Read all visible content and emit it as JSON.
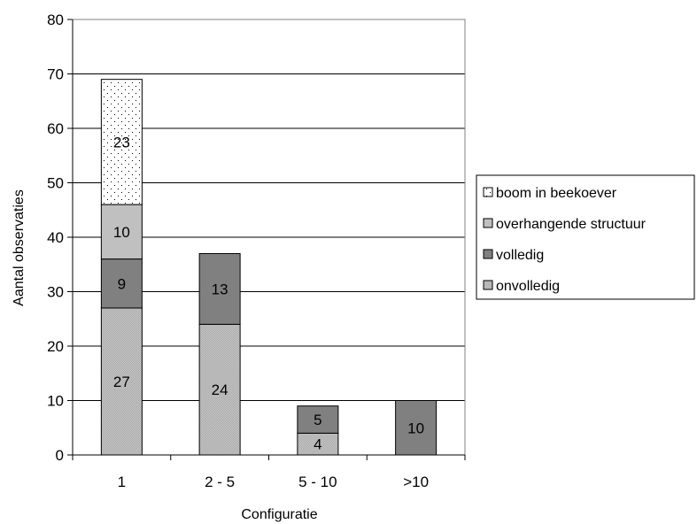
{
  "chart_data": {
    "type": "bar",
    "stacked": true,
    "categories": [
      "1",
      "2 - 5",
      "5 - 10",
      ">10"
    ],
    "series": [
      {
        "name": "onvolledig",
        "values": [
          27,
          24,
          4,
          0
        ],
        "color": "#c0c0c0",
        "pattern": "fine-check"
      },
      {
        "name": "volledig",
        "values": [
          9,
          13,
          5,
          10
        ],
        "color": "#808080",
        "pattern": "solid"
      },
      {
        "name": "overhangende structuur",
        "values": [
          10,
          0,
          0,
          0
        ],
        "color": "#c0c0c0",
        "pattern": "solid"
      },
      {
        "name": "boom in beekoever",
        "values": [
          23,
          0,
          0,
          0
        ],
        "color": "#ffffff",
        "pattern": "dots"
      }
    ],
    "legend_order": [
      "boom in beekoever",
      "overhangende structuur",
      "volledig",
      "onvolledig"
    ],
    "xlabel": "Configuratie",
    "ylabel": "Aantal observaties",
    "ylim": [
      0,
      80
    ],
    "yticks": [
      0,
      10,
      20,
      30,
      40,
      50,
      60,
      70,
      80
    ],
    "grid": true,
    "legend_position": "right"
  }
}
